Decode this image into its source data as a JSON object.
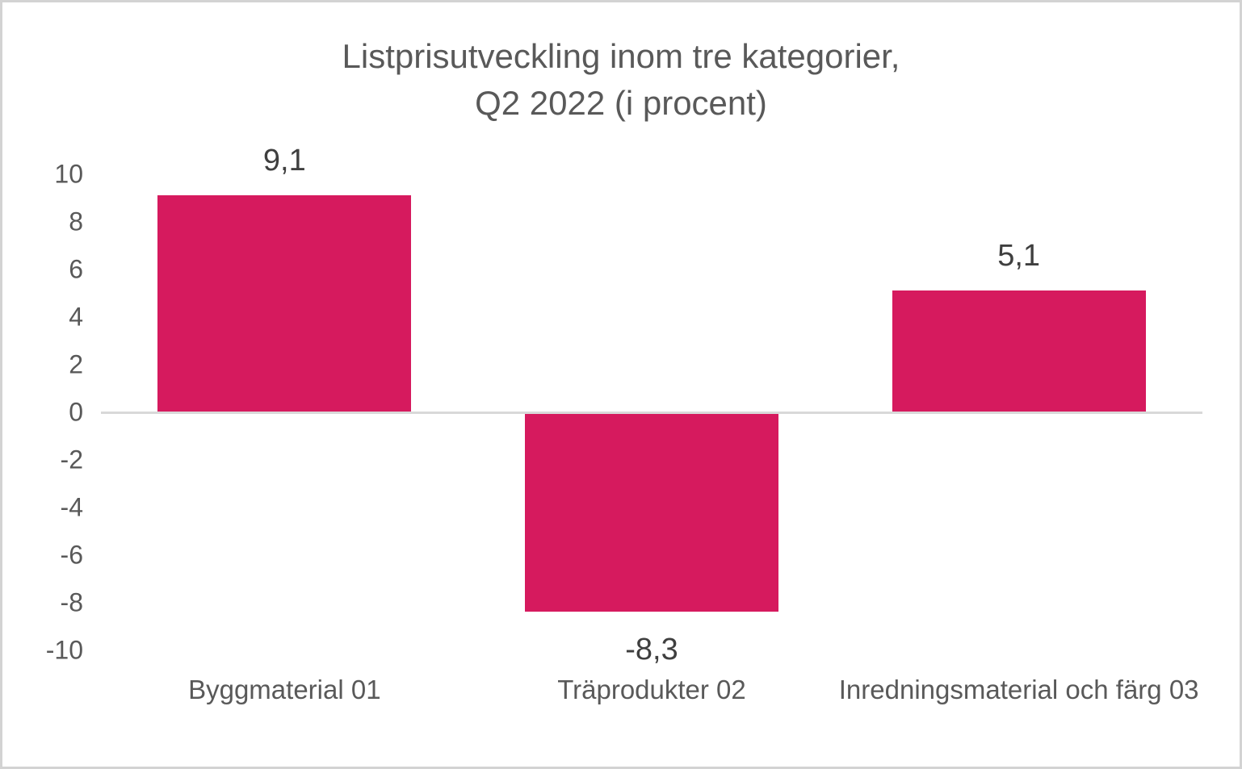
{
  "frame": {
    "background": "#FFFFFF",
    "border_color": "#D3D3D3"
  },
  "chart_data": {
    "type": "bar",
    "title_lines": [
      "Listprisutveckling inom tre kategorier,",
      "Q2 2022 (i procent)"
    ],
    "title": "Listprisutveckling inom tre kategorier, Q2 2022 (i procent)",
    "categories": [
      "Byggmaterial 01",
      "Träprodukter 02",
      "Inredningsmaterial och färg 03"
    ],
    "values": [
      9.1,
      -8.3,
      5.1
    ],
    "value_labels": [
      "9,1",
      "-8,3",
      "5,1"
    ],
    "xlabel": "",
    "ylabel": "",
    "ylim": [
      -10,
      10
    ],
    "ytick_step": 2,
    "yticks": [
      10,
      8,
      6,
      4,
      2,
      0,
      -2,
      -4,
      -6,
      -8,
      -10
    ],
    "grid": false,
    "legend": "none",
    "bar_color": "#D61A5E",
    "title_color": "#595959",
    "axis_label_color": "#595959",
    "data_label_color": "#3F3F3F",
    "zero_line_color": "#D9D9D9"
  }
}
